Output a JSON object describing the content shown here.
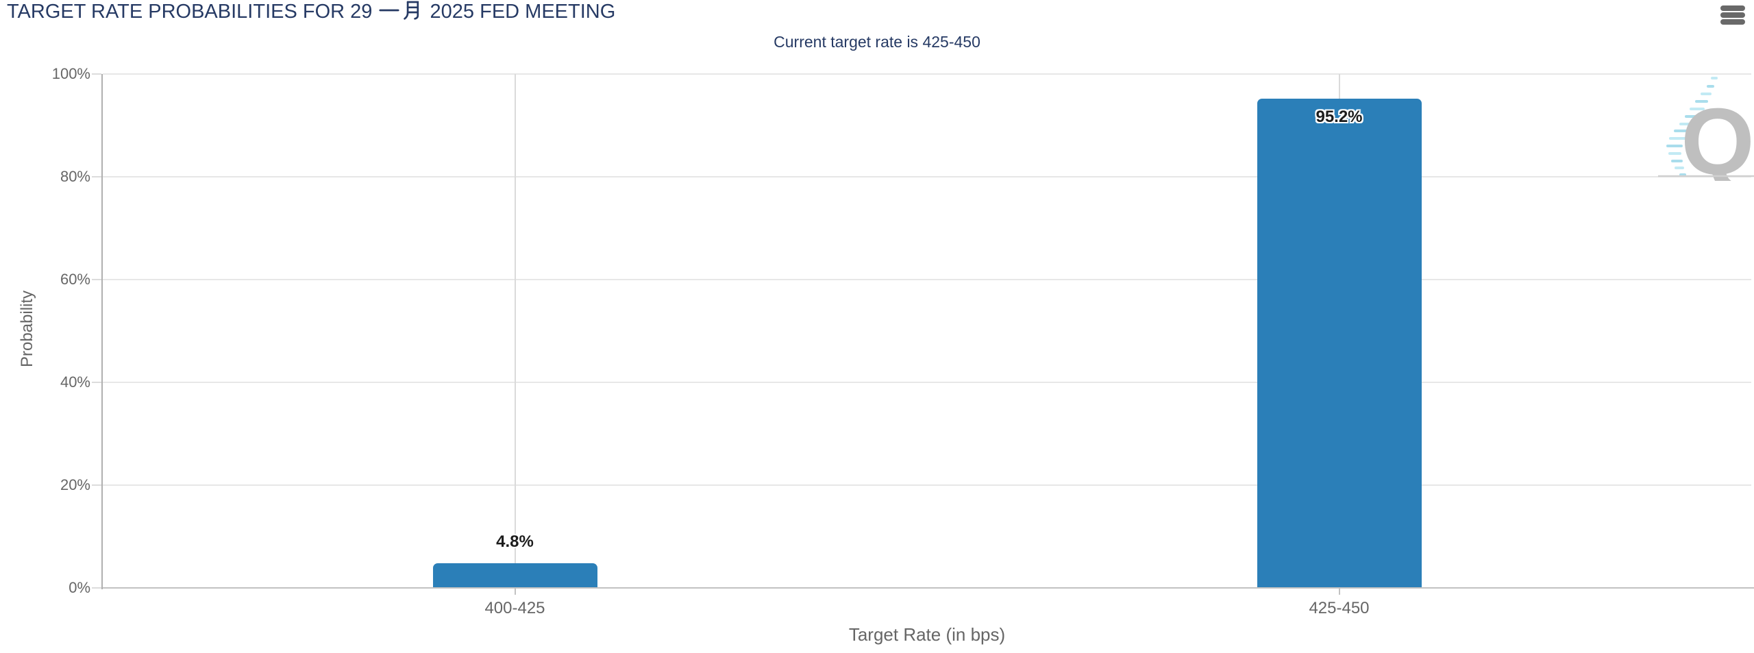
{
  "header": {
    "context_menu_icon": "hamburger-icon"
  },
  "watermark": {
    "letter": "Q",
    "name": "quikstrike-q-logo"
  },
  "chart_data": {
    "type": "bar",
    "title": "TARGET RATE PROBABILITIES FOR 29 一月 2025 FED MEETING",
    "title_parts": {
      "prefix": "TARGET RATE PROBABILITIES FOR 29",
      "month_cjk": "一月",
      "suffix": "2025 FED MEETING"
    },
    "subtitle": "Current target rate is 425-450",
    "categories": [
      "400-425",
      "425-450"
    ],
    "values": [
      4.8,
      95.2
    ],
    "value_labels": [
      "4.8%",
      "95.2%"
    ],
    "xlabel": "Target Rate (in bps)",
    "ylabel": "Probability",
    "ylim": [
      0,
      100
    ],
    "ytick_values": [
      0,
      20,
      40,
      60,
      80,
      100
    ],
    "ytick_labels": [
      "0%",
      "20%",
      "40%",
      "60%",
      "80%",
      "100%"
    ],
    "grid": true,
    "legend": "none",
    "colors": {
      "bar": "#2b7fb8",
      "title_text": "#263a64",
      "axis_text": "#666666",
      "gridline": "#e7e7e7",
      "axis_line": "#c2c2c2"
    }
  }
}
